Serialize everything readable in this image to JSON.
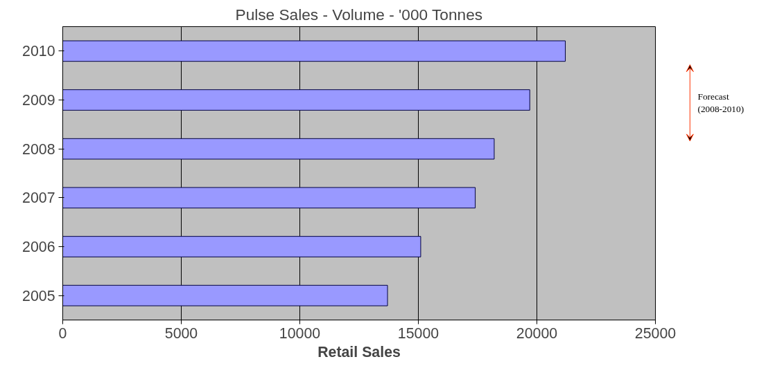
{
  "chart_data": {
    "type": "bar",
    "orientation": "horizontal",
    "title": "Pulse Sales - Volume - '000 Tonnes",
    "xlabel": "Retail Sales",
    "categories": [
      "2010",
      "2009",
      "2008",
      "2007",
      "2006",
      "2005"
    ],
    "values": [
      21200,
      19700,
      18200,
      17400,
      15100,
      13700
    ],
    "color": "#9999ff",
    "xlim": [
      0,
      25000
    ],
    "xticks": [
      0,
      5000,
      10000,
      15000,
      20000,
      25000
    ],
    "grid": "x",
    "annotations": [
      "Forecast\n(2008-2010)"
    ]
  }
}
